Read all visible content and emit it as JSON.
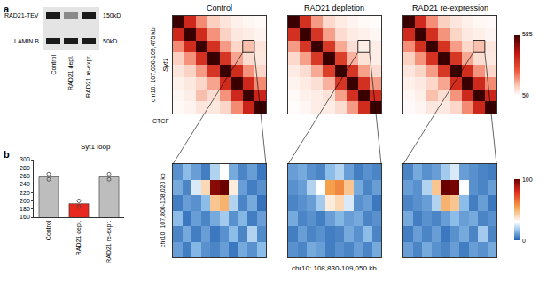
{
  "panel_labels": [
    "a",
    "b"
  ],
  "western_blot": {
    "bands": [
      "RAD21-TEV",
      "LAMIN B"
    ],
    "markers": [
      "150kD",
      "50kD"
    ],
    "lanes": [
      "Control",
      "RAD21 depl.",
      "RAD21 re-expr."
    ]
  },
  "hic_maps": {
    "titles": [
      "Control",
      "RAD21 depletion",
      "RAD21 re-expression"
    ],
    "region_label": "chr10: 107,000-109,475 kb",
    "gene": "Syt1",
    "track": "CTCF",
    "colorbar": {
      "range": [
        50,
        585
      ],
      "ticks": [
        50,
        585
      ]
    },
    "cells": [
      [
        [
          585,
          380,
          210,
          130,
          95,
          75,
          65,
          60
        ],
        [
          380,
          585,
          370,
          200,
          125,
          90,
          80,
          70
        ],
        [
          210,
          370,
          585,
          360,
          190,
          120,
          150,
          95
        ],
        [
          130,
          200,
          360,
          585,
          350,
          180,
          110,
          90
        ],
        [
          95,
          125,
          190,
          350,
          585,
          370,
          200,
          120
        ],
        [
          75,
          90,
          120,
          180,
          370,
          585,
          380,
          210
        ],
        [
          65,
          80,
          150,
          110,
          200,
          380,
          585,
          390
        ],
        [
          60,
          70,
          95,
          90,
          120,
          210,
          390,
          585
        ]
      ],
      [
        [
          585,
          360,
          190,
          115,
          85,
          70,
          60,
          55
        ],
        [
          360,
          585,
          350,
          185,
          110,
          85,
          75,
          65
        ],
        [
          190,
          350,
          585,
          340,
          175,
          105,
          80,
          80
        ],
        [
          115,
          185,
          340,
          585,
          330,
          165,
          100,
          80
        ],
        [
          85,
          110,
          175,
          330,
          585,
          350,
          185,
          110
        ],
        [
          70,
          85,
          105,
          165,
          350,
          585,
          360,
          190
        ],
        [
          60,
          75,
          80,
          100,
          185,
          360,
          585,
          370
        ],
        [
          55,
          65,
          80,
          80,
          110,
          190,
          370,
          585
        ]
      ],
      [
        [
          585,
          375,
          205,
          128,
          92,
          74,
          64,
          58
        ],
        [
          375,
          585,
          365,
          198,
          122,
          88,
          78,
          68
        ],
        [
          205,
          365,
          585,
          355,
          188,
          118,
          148,
          92
        ],
        [
          128,
          198,
          355,
          585,
          348,
          178,
          108,
          88
        ],
        [
          92,
          122,
          188,
          348,
          585,
          368,
          198,
          118
        ],
        [
          74,
          88,
          118,
          178,
          368,
          585,
          378,
          208
        ],
        [
          64,
          78,
          148,
          108,
          198,
          378,
          585,
          385
        ],
        [
          58,
          68,
          92,
          88,
          118,
          208,
          385,
          585
        ]
      ]
    ]
  },
  "zoom_maps": {
    "y_label": "chr10: 107,800-108,020 kb",
    "x_label": "chr10: 108,830-109,050 kb",
    "colorbar": {
      "range": [
        0,
        100
      ],
      "ticks": [
        0,
        100
      ]
    },
    "cells": [
      [
        [
          8,
          15,
          10,
          5,
          20,
          30,
          12,
          6,
          10,
          4
        ],
        [
          12,
          6,
          25,
          40,
          95,
          100,
          35,
          10,
          5,
          8
        ],
        [
          5,
          10,
          8,
          15,
          45,
          50,
          20,
          6,
          12,
          3
        ],
        [
          15,
          4,
          10,
          6,
          12,
          18,
          8,
          14,
          5,
          10
        ],
        [
          6,
          12,
          5,
          10,
          4,
          8,
          15,
          6,
          20,
          7
        ],
        [
          10,
          5,
          14,
          8,
          6,
          10,
          4,
          12,
          8,
          15
        ]
      ],
      [
        [
          10,
          12,
          8,
          6,
          15,
          20,
          10,
          5,
          8,
          6
        ],
        [
          8,
          10,
          20,
          30,
          55,
          60,
          45,
          12,
          6,
          10
        ],
        [
          6,
          8,
          10,
          18,
          35,
          40,
          25,
          8,
          10,
          4
        ],
        [
          12,
          6,
          8,
          5,
          10,
          14,
          10,
          12,
          6,
          8
        ],
        [
          5,
          10,
          6,
          8,
          5,
          6,
          12,
          8,
          15,
          6
        ],
        [
          8,
          6,
          12,
          10,
          5,
          8,
          6,
          10,
          6,
          12
        ]
      ],
      [
        [
          6,
          12,
          8,
          10,
          18,
          25,
          10,
          8,
          6,
          5
        ],
        [
          10,
          8,
          20,
          45,
          100,
          98,
          30,
          8,
          6,
          10
        ],
        [
          6,
          8,
          10,
          20,
          50,
          45,
          15,
          5,
          10,
          4
        ],
        [
          12,
          5,
          8,
          6,
          10,
          15,
          10,
          12,
          6,
          8
        ],
        [
          5,
          10,
          6,
          10,
          4,
          8,
          12,
          6,
          18,
          6
        ],
        [
          10,
          6,
          12,
          8,
          6,
          10,
          5,
          10,
          8,
          12
        ]
      ]
    ]
  },
  "chart_data": {
    "type": "bar",
    "title": "Syt1 loop",
    "categories": [
      "Control",
      "RAD21 depl.",
      "RAD21 re-expr."
    ],
    "values": [
      258,
      193,
      258
    ],
    "points": [
      [
        265,
        252
      ],
      [
        200,
        186
      ],
      [
        265,
        252
      ]
    ],
    "colors": [
      "#bdbdbd",
      "#e8281e",
      "#bdbdbd"
    ],
    "ylim": [
      160,
      300
    ],
    "yticks": [
      160,
      180,
      200,
      220,
      240,
      260,
      280,
      300
    ],
    "grid": false
  }
}
